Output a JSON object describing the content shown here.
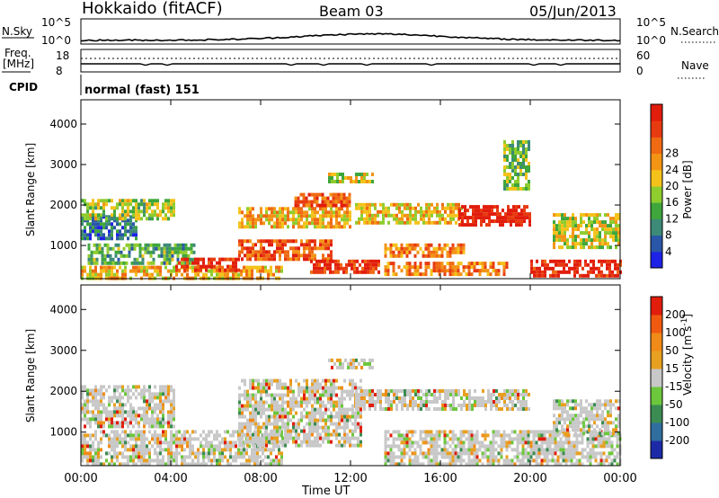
{
  "header": {
    "radar": "Hokkaido (fitACF)",
    "beam": "Beam 03",
    "date": "05/Jun/2013"
  },
  "noise_panel": {
    "left_label": "N.Sky",
    "left_ticks": [
      "10^5",
      "10^0"
    ],
    "right_ticks": [
      "10^5",
      "10^0"
    ],
    "right_label": "N.Search"
  },
  "freq_panel": {
    "left_label_1": "Freq.",
    "left_label_2": "[MHz]",
    "left_ticks": [
      "18",
      "8"
    ],
    "right_ticks": [
      "60",
      "0"
    ],
    "right_label": "Nave"
  },
  "cpid_panel": {
    "label": "CPID",
    "program": "normal (fast) 151"
  },
  "chart_data": [
    {
      "type": "heatmap",
      "name": "power",
      "ylabel": "Slant Range [km]",
      "ylim": [
        180,
        4600
      ],
      "yticks": [
        1000,
        2000,
        3000,
        4000
      ],
      "xticks_hours": [
        0,
        4,
        8,
        12,
        16,
        20,
        24
      ],
      "colorbar": {
        "label": "Power [dB]",
        "ticks": [
          "4",
          "8",
          "12",
          "16",
          "20",
          "24",
          "28"
        ],
        "colors": [
          "#1e22e6",
          "#2a56a8",
          "#3d8a78",
          "#3fa63c",
          "#8fcc2e",
          "#f4c21a",
          "#f39415",
          "#ef6a12",
          "#e83a10",
          "#e11d0c"
        ]
      },
      "bands": [
        {
          "start": 0.0,
          "end": 2.5,
          "r0": 1150,
          "r1": 1750,
          "level": 0.2
        },
        {
          "start": 0.0,
          "end": 4.2,
          "r0": 1700,
          "r1": 2150,
          "level": 0.45
        },
        {
          "start": 0.3,
          "end": 5.0,
          "r0": 600,
          "r1": 1050,
          "level": 0.35
        },
        {
          "start": 0.0,
          "end": 9.0,
          "r0": 200,
          "r1": 500,
          "level": 0.6
        },
        {
          "start": 4.2,
          "end": 7.0,
          "r0": 350,
          "r1": 700,
          "level": 0.92
        },
        {
          "start": 7.0,
          "end": 11.2,
          "r0": 700,
          "r1": 1150,
          "level": 0.8
        },
        {
          "start": 7.0,
          "end": 12.0,
          "r0": 1500,
          "r1": 1950,
          "level": 0.62
        },
        {
          "start": 9.5,
          "end": 12.0,
          "r0": 2000,
          "r1": 2300,
          "level": 0.78
        },
        {
          "start": 11.0,
          "end": 13.0,
          "r0": 2550,
          "r1": 2800,
          "level": 0.5
        },
        {
          "start": 10.2,
          "end": 13.3,
          "r0": 300,
          "r1": 650,
          "level": 0.9
        },
        {
          "start": 12.2,
          "end": 17.0,
          "r0": 1600,
          "r1": 2050,
          "level": 0.58
        },
        {
          "start": 13.5,
          "end": 17.0,
          "r0": 750,
          "r1": 1050,
          "level": 0.7
        },
        {
          "start": 16.8,
          "end": 20.0,
          "r0": 1550,
          "r1": 2000,
          "level": 0.98
        },
        {
          "start": 13.5,
          "end": 19.0,
          "r0": 300,
          "r1": 600,
          "level": 0.72
        },
        {
          "start": 20.0,
          "end": 24.0,
          "r0": 250,
          "r1": 650,
          "level": 0.95
        },
        {
          "start": 21.0,
          "end": 24.0,
          "r0": 1000,
          "r1": 1800,
          "level": 0.5
        },
        {
          "start": 18.8,
          "end": 20.0,
          "r0": 2400,
          "r1": 3600,
          "level": 0.4
        }
      ]
    },
    {
      "type": "heatmap",
      "name": "velocity",
      "ylabel": "Slant Range [km]",
      "ylim": [
        180,
        4600
      ],
      "yticks": [
        1000,
        2000,
        3000,
        4000
      ],
      "xticks_hours": [
        0,
        4,
        8,
        12,
        16,
        20,
        24
      ],
      "xticks": [
        "00:00",
        "04:00",
        "08:00",
        "12:00",
        "16:00",
        "20:00",
        "00:00"
      ],
      "xlabel": "Time UT",
      "colorbar": {
        "label": "Velocity [m s",
        "label_sup": "-1",
        "label_end": "]",
        "ticks": [
          "200",
          "100",
          "50",
          "15",
          "-15",
          "-50",
          "-100",
          "-200"
        ],
        "colors": [
          "#1c2aa8",
          "#2f6e9e",
          "#3b8c52",
          "#6cc73c",
          "#c8c8c8",
          "#e8a020",
          "#f08a18",
          "#f05a10",
          "#e11d0c"
        ]
      },
      "bands": [
        {
          "start": 0.0,
          "end": 4.2,
          "r0": 1150,
          "r1": 2150,
          "level": 0.5
        },
        {
          "start": 0.0,
          "end": 9.0,
          "r0": 200,
          "r1": 1050,
          "level": 0.5
        },
        {
          "start": 7.0,
          "end": 12.5,
          "r0": 700,
          "r1": 2300,
          "level": 0.5
        },
        {
          "start": 11.0,
          "end": 13.0,
          "r0": 2550,
          "r1": 2800,
          "level": 0.5
        },
        {
          "start": 12.2,
          "end": 20.0,
          "r0": 1550,
          "r1": 2050,
          "level": 0.5
        },
        {
          "start": 13.5,
          "end": 24.0,
          "r0": 250,
          "r1": 1050,
          "level": 0.5
        },
        {
          "start": 21.0,
          "end": 24.0,
          "r0": 1000,
          "r1": 1800,
          "level": 0.5
        }
      ]
    }
  ]
}
